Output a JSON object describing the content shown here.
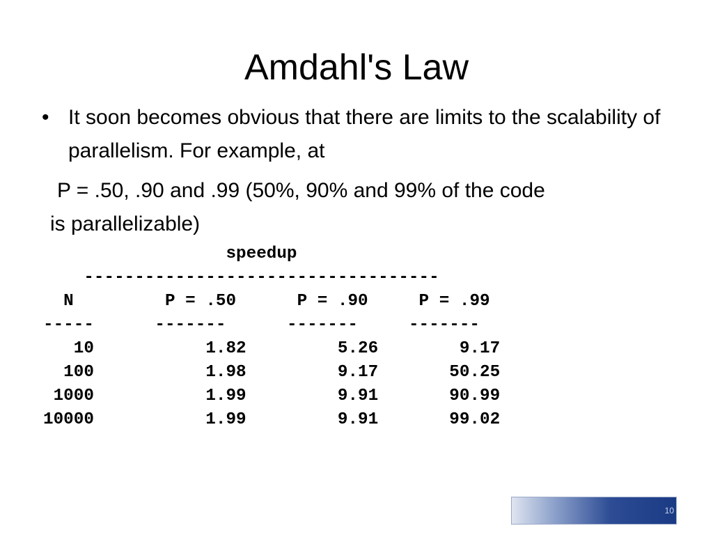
{
  "slide": {
    "title": "Amdahl's Law",
    "bullet_symbol": "•",
    "bullet_text": "It soon becomes obvious that there are limits to the scalability of parallelism. For example, at",
    "para_line1": "P = .50, .90 and .99 (50%, 90% and 99% of the code",
    "para_line2": "is parallelizable)",
    "page_number": "10"
  },
  "table": {
    "group_header": "speedup",
    "group_rule": "-----------------------------------",
    "columns": [
      "N",
      "P = .50",
      "P = .90",
      "P = .99"
    ],
    "column_rules": [
      "-----",
      "-------",
      "-------",
      "-------"
    ],
    "rows": [
      [
        "10",
        "1.82",
        "5.26",
        "9.17"
      ],
      [
        "100",
        "1.98",
        "9.17",
        "50.25"
      ],
      [
        "1000",
        "1.99",
        "9.91",
        "90.99"
      ],
      [
        "10000",
        "1.99",
        "9.91",
        "99.02"
      ]
    ]
  }
}
